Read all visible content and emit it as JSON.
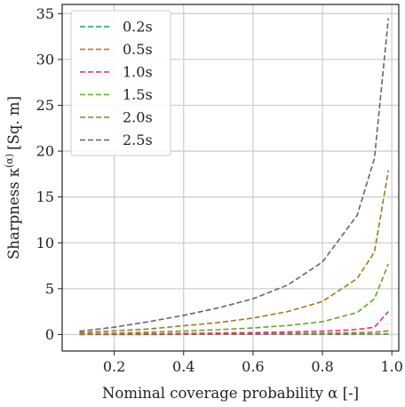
{
  "chart_data": {
    "type": "line",
    "xlabel": "Nominal coverage probability α [-]",
    "ylabel": "Sharpness κ",
    "ylabel_sup": "(α)",
    "ylabel_unit": "[Sq. m]",
    "xlim": [
      0.05,
      1.02
    ],
    "ylim": [
      -1.8,
      36
    ],
    "xticks": [
      0.2,
      0.4,
      0.6,
      0.8,
      1.0
    ],
    "xtick_labels": [
      "0.2",
      "0.4",
      "0.6",
      "0.8",
      "1.0"
    ],
    "yticks": [
      0,
      5,
      10,
      15,
      20,
      25,
      30,
      35
    ],
    "ytick_labels": [
      "0",
      "5",
      "10",
      "15",
      "20",
      "25",
      "30",
      "35"
    ],
    "grid": true,
    "legend_position": "top-left",
    "line_style": "dashed",
    "x": [
      0.1,
      0.2,
      0.3,
      0.4,
      0.5,
      0.6,
      0.7,
      0.8,
      0.9,
      0.95,
      0.99
    ],
    "series": [
      {
        "name": "0.2s",
        "color": "#1b9e77",
        "values": [
          0.0,
          0.01,
          0.01,
          0.01,
          0.02,
          0.02,
          0.03,
          0.03,
          0.04,
          0.05,
          0.07
        ]
      },
      {
        "name": "0.5s",
        "color": "#d95f02",
        "values": [
          0.01,
          0.02,
          0.03,
          0.05,
          0.06,
          0.08,
          0.11,
          0.14,
          0.19,
          0.25,
          0.4
        ]
      },
      {
        "name": "1.0s",
        "color": "#e7298a",
        "values": [
          0.03,
          0.06,
          0.09,
          0.12,
          0.16,
          0.21,
          0.27,
          0.36,
          0.55,
          0.8,
          2.5
        ]
      },
      {
        "name": "1.5s",
        "color": "#66a61e",
        "values": [
          0.07,
          0.15,
          0.26,
          0.38,
          0.53,
          0.72,
          0.98,
          1.4,
          2.4,
          3.9,
          7.7
        ]
      },
      {
        "name": "2.0s",
        "color": "#a6761d",
        "values": [
          0.2,
          0.4,
          0.6,
          0.95,
          1.3,
          1.8,
          2.5,
          3.6,
          6.1,
          9.0,
          17.9
        ]
      },
      {
        "name": "2.5s",
        "color": "#666666",
        "values": [
          0.35,
          0.8,
          1.4,
          2.1,
          2.9,
          3.9,
          5.4,
          7.9,
          13.0,
          19.2,
          34.5
        ]
      }
    ]
  }
}
